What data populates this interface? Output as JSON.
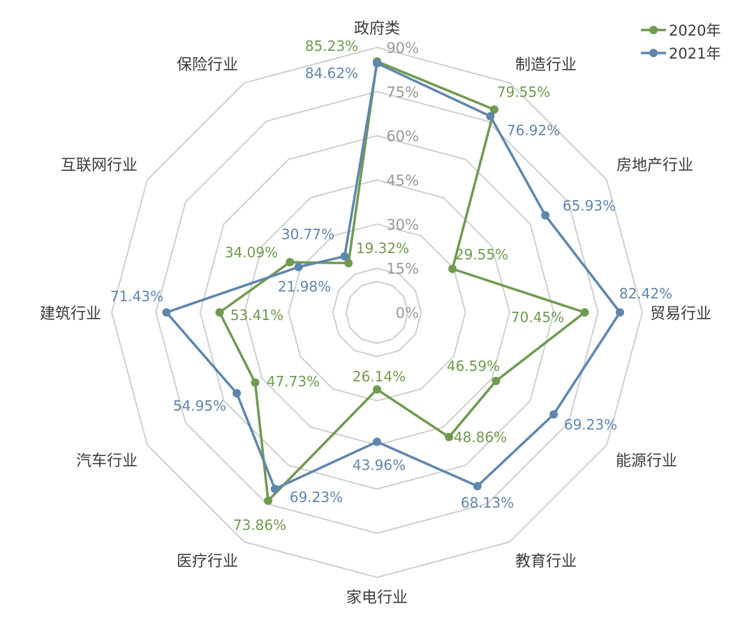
{
  "chart_data": {
    "type": "radar",
    "categories": [
      "政府类",
      "制造行业",
      "房地产行业",
      "贸易行业",
      "能源行业",
      "教育行业",
      "家电行业",
      "医疗行业",
      "汽车行业",
      "建筑行业",
      "互联网行业",
      "保险行业"
    ],
    "series": [
      {
        "name": "2020年",
        "color": "#6f9a4f",
        "values": [
          85.23,
          79.55,
          29.55,
          70.45,
          46.59,
          48.86,
          26.14,
          73.86,
          47.73,
          53.41,
          34.09,
          19.32
        ],
        "labels": [
          "85.23%",
          "79.55%",
          "29.55%",
          "70.45%",
          "46.59%",
          "48.86%",
          "26.14%",
          "73.86%",
          "47.73%",
          "53.41%",
          "34.09%",
          "19.32%"
        ]
      },
      {
        "name": "2021年",
        "color": "#5f86ad",
        "values": [
          84.62,
          76.92,
          65.93,
          82.42,
          69.23,
          68.13,
          43.96,
          69.23,
          54.95,
          71.43,
          30.77,
          21.98
        ],
        "labels": [
          "84.62%",
          "76.92%",
          "65.93%",
          "82.42%",
          "69.23%",
          "68.13%",
          "43.96%",
          "69.23%",
          "54.95%",
          "71.43%",
          "30.77%",
          "21.98%"
        ]
      }
    ],
    "radial_ticks": [
      0,
      15,
      30,
      45,
      60,
      75,
      90
    ],
    "radial_tick_labels": [
      "0%",
      "15%",
      "30%",
      "45%",
      "60%",
      "75%",
      "90%"
    ],
    "range": [
      0,
      90
    ],
    "legend_position": "top-right",
    "grid": true
  }
}
